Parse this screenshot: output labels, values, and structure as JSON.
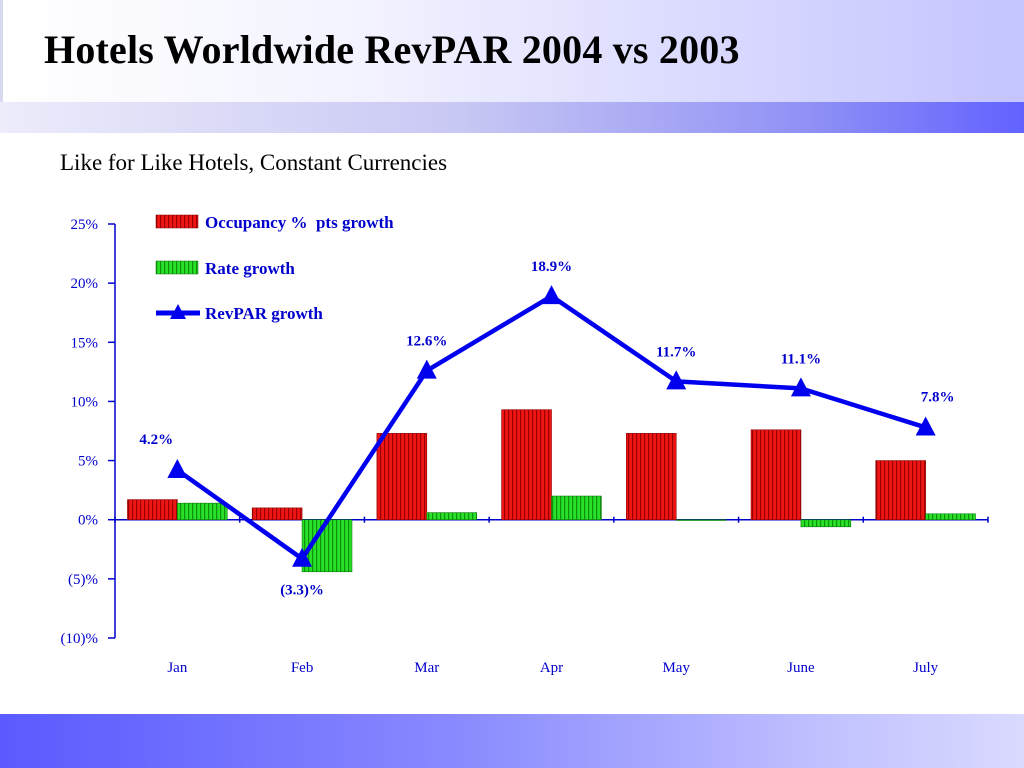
{
  "slide": {
    "title": "Hotels Worldwide RevPAR 2004 vs 2003",
    "subtitle": "Like for Like Hotels, Constant Currencies"
  },
  "colors": {
    "occupancy_bar": "#ee1111",
    "rate_bar": "#22dd22",
    "revpar_line": "#0000ee",
    "axis": "#0000cc",
    "text": "#0000cc"
  },
  "chart_data": {
    "type": "bar",
    "categories": [
      "Jan",
      "Feb",
      "Mar",
      "Apr",
      "May",
      "June",
      "July"
    ],
    "series": [
      {
        "name": "Occupancy %  pts growth",
        "type": "bar",
        "values": [
          1.7,
          1.0,
          7.3,
          9.3,
          7.3,
          7.6,
          5.0
        ]
      },
      {
        "name": "Rate growth",
        "type": "bar",
        "values": [
          1.4,
          -4.4,
          0.6,
          2.0,
          0.0,
          -0.6,
          0.5
        ]
      },
      {
        "name": "RevPAR growth",
        "type": "line",
        "marker": "triangle",
        "values": [
          4.2,
          -3.3,
          12.6,
          18.9,
          11.7,
          11.1,
          7.8
        ]
      }
    ],
    "data_labels": [
      "4.2%",
      "(3.3)%",
      "12.6%",
      "18.9%",
      "11.7%",
      "11.1%",
      "7.8%"
    ],
    "ylim": [
      -10,
      25
    ],
    "y_ticks": [
      25,
      20,
      15,
      10,
      5,
      0,
      -5,
      -10
    ],
    "y_tick_labels": [
      "25%",
      "20%",
      "15%",
      "10%",
      "5%",
      "0%",
      "(5)%",
      "(10)%"
    ],
    "xlabel": "",
    "ylabel": "",
    "grid": false,
    "legend_position": "top-left"
  }
}
